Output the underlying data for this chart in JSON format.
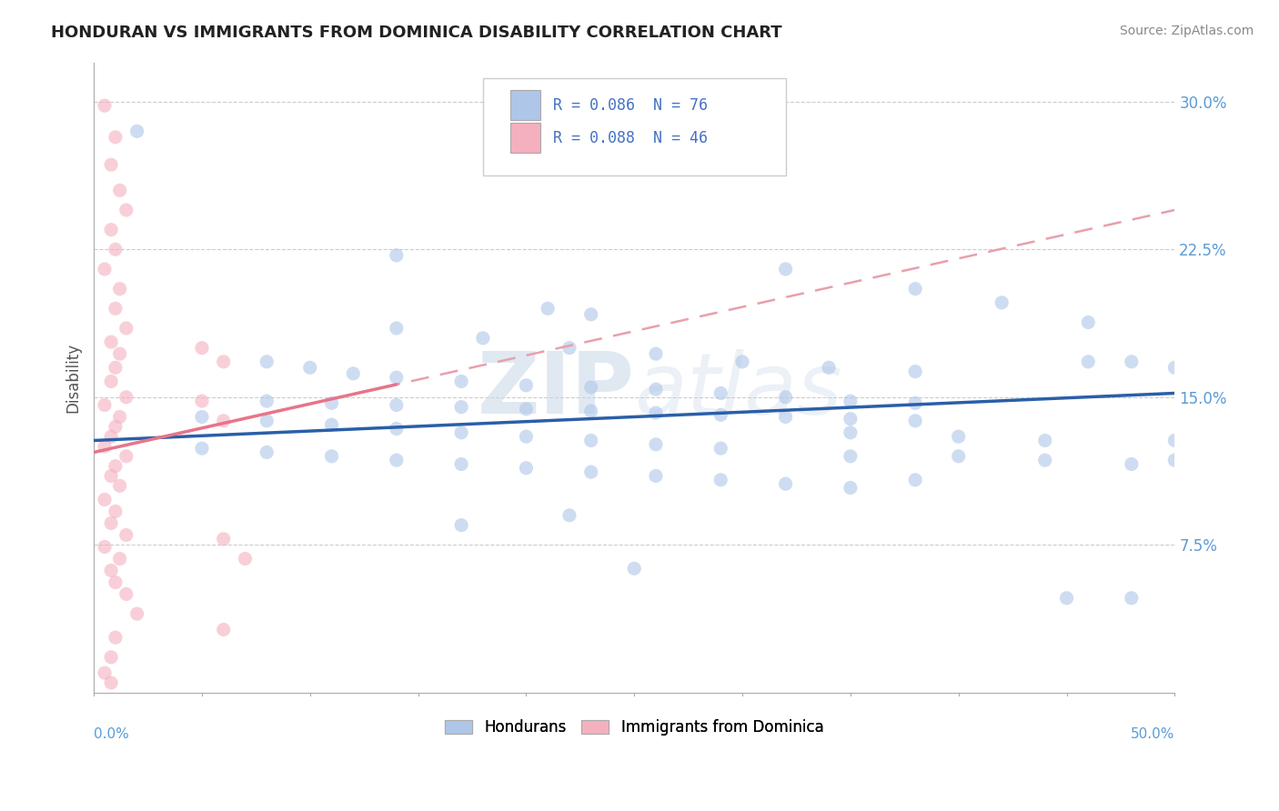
{
  "title": "HONDURAN VS IMMIGRANTS FROM DOMINICA DISABILITY CORRELATION CHART",
  "source": "Source: ZipAtlas.com",
  "ylabel": "Disability",
  "xlim": [
    0.0,
    0.5
  ],
  "ylim": [
    0.0,
    0.32
  ],
  "yticks": [
    0.075,
    0.15,
    0.225,
    0.3
  ],
  "ytick_labels": [
    "7.5%",
    "15.0%",
    "22.5%",
    "30.0%"
  ],
  "legend_r1": "R = 0.086  N = 76",
  "legend_r2": "R = 0.088  N = 46",
  "bottom_legend": [
    "Hondurans",
    "Immigrants from Dominica"
  ],
  "blue_color": "#aec6e8",
  "pink_color": "#f4b0be",
  "blue_line_color": "#2a5fa8",
  "pink_line_color": "#e8748a",
  "pink_line_dash_color": "#e8a0aa",
  "watermark": "ZIPatlas",
  "blue_line": [
    0.0,
    0.128,
    0.5,
    0.152
  ],
  "pink_line": [
    0.0,
    0.122,
    0.5,
    0.245
  ],
  "honduran_scatter": [
    [
      0.02,
      0.285
    ],
    [
      0.14,
      0.222
    ],
    [
      0.21,
      0.195
    ],
    [
      0.23,
      0.192
    ],
    [
      0.14,
      0.185
    ],
    [
      0.18,
      0.18
    ],
    [
      0.22,
      0.175
    ],
    [
      0.26,
      0.172
    ],
    [
      0.3,
      0.168
    ],
    [
      0.34,
      0.165
    ],
    [
      0.38,
      0.163
    ],
    [
      0.32,
      0.215
    ],
    [
      0.38,
      0.205
    ],
    [
      0.42,
      0.198
    ],
    [
      0.46,
      0.188
    ],
    [
      0.08,
      0.168
    ],
    [
      0.1,
      0.165
    ],
    [
      0.12,
      0.162
    ],
    [
      0.14,
      0.16
    ],
    [
      0.17,
      0.158
    ],
    [
      0.2,
      0.156
    ],
    [
      0.23,
      0.155
    ],
    [
      0.26,
      0.154
    ],
    [
      0.29,
      0.152
    ],
    [
      0.32,
      0.15
    ],
    [
      0.35,
      0.148
    ],
    [
      0.38,
      0.147
    ],
    [
      0.08,
      0.148
    ],
    [
      0.11,
      0.147
    ],
    [
      0.14,
      0.146
    ],
    [
      0.17,
      0.145
    ],
    [
      0.2,
      0.144
    ],
    [
      0.23,
      0.143
    ],
    [
      0.26,
      0.142
    ],
    [
      0.29,
      0.141
    ],
    [
      0.32,
      0.14
    ],
    [
      0.35,
      0.139
    ],
    [
      0.38,
      0.138
    ],
    [
      0.05,
      0.14
    ],
    [
      0.08,
      0.138
    ],
    [
      0.11,
      0.136
    ],
    [
      0.14,
      0.134
    ],
    [
      0.17,
      0.132
    ],
    [
      0.2,
      0.13
    ],
    [
      0.23,
      0.128
    ],
    [
      0.26,
      0.126
    ],
    [
      0.29,
      0.124
    ],
    [
      0.05,
      0.124
    ],
    [
      0.08,
      0.122
    ],
    [
      0.11,
      0.12
    ],
    [
      0.14,
      0.118
    ],
    [
      0.17,
      0.116
    ],
    [
      0.2,
      0.114
    ],
    [
      0.23,
      0.112
    ],
    [
      0.26,
      0.11
    ],
    [
      0.29,
      0.108
    ],
    [
      0.32,
      0.106
    ],
    [
      0.35,
      0.104
    ],
    [
      0.38,
      0.108
    ],
    [
      0.35,
      0.12
    ],
    [
      0.4,
      0.12
    ],
    [
      0.44,
      0.118
    ],
    [
      0.48,
      0.116
    ],
    [
      0.5,
      0.118
    ],
    [
      0.35,
      0.132
    ],
    [
      0.4,
      0.13
    ],
    [
      0.44,
      0.128
    ],
    [
      0.5,
      0.128
    ],
    [
      0.46,
      0.168
    ],
    [
      0.48,
      0.168
    ],
    [
      0.5,
      0.165
    ],
    [
      0.22,
      0.09
    ],
    [
      0.17,
      0.085
    ],
    [
      0.25,
      0.063
    ],
    [
      0.45,
      0.048
    ],
    [
      0.48,
      0.048
    ]
  ],
  "dominica_scatter": [
    [
      0.005,
      0.298
    ],
    [
      0.01,
      0.282
    ],
    [
      0.008,
      0.268
    ],
    [
      0.012,
      0.255
    ],
    [
      0.015,
      0.245
    ],
    [
      0.008,
      0.235
    ],
    [
      0.01,
      0.225
    ],
    [
      0.005,
      0.215
    ],
    [
      0.012,
      0.205
    ],
    [
      0.01,
      0.195
    ],
    [
      0.015,
      0.185
    ],
    [
      0.008,
      0.178
    ],
    [
      0.012,
      0.172
    ],
    [
      0.01,
      0.165
    ],
    [
      0.008,
      0.158
    ],
    [
      0.015,
      0.15
    ],
    [
      0.005,
      0.146
    ],
    [
      0.012,
      0.14
    ],
    [
      0.01,
      0.135
    ],
    [
      0.008,
      0.13
    ],
    [
      0.005,
      0.125
    ],
    [
      0.015,
      0.12
    ],
    [
      0.01,
      0.115
    ],
    [
      0.008,
      0.11
    ],
    [
      0.012,
      0.105
    ],
    [
      0.005,
      0.098
    ],
    [
      0.01,
      0.092
    ],
    [
      0.008,
      0.086
    ],
    [
      0.015,
      0.08
    ],
    [
      0.005,
      0.074
    ],
    [
      0.012,
      0.068
    ],
    [
      0.008,
      0.062
    ],
    [
      0.01,
      0.056
    ],
    [
      0.015,
      0.05
    ],
    [
      0.05,
      0.175
    ],
    [
      0.06,
      0.168
    ],
    [
      0.05,
      0.148
    ],
    [
      0.06,
      0.138
    ],
    [
      0.02,
      0.04
    ],
    [
      0.06,
      0.032
    ],
    [
      0.01,
      0.028
    ],
    [
      0.008,
      0.018
    ],
    [
      0.005,
      0.01
    ],
    [
      0.008,
      0.005
    ],
    [
      0.06,
      0.078
    ],
    [
      0.07,
      0.068
    ]
  ]
}
